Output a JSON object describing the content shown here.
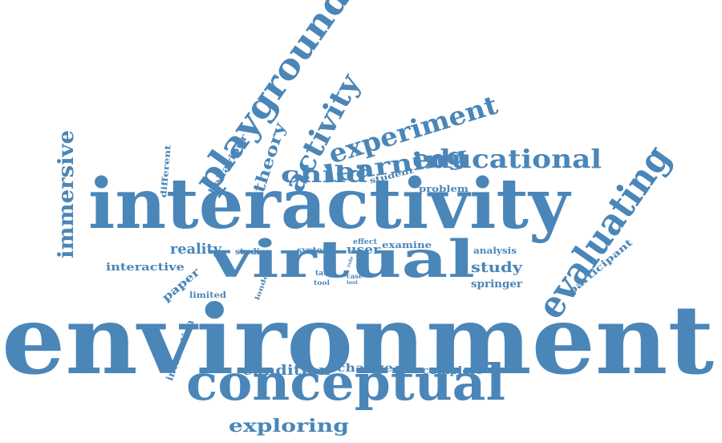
{
  "color": "#4a86b8",
  "words": [
    "environment",
    "interactivity",
    "virtual",
    "conceptual",
    "evaluating",
    "playground",
    "activity",
    "experiment",
    "learning",
    "educational",
    "immersive",
    "child",
    "theory",
    "behaviour",
    "different",
    "student",
    "problem",
    "reality",
    "interactive",
    "studies",
    "system",
    "effect",
    "examine",
    "user",
    "analysis",
    "study",
    "springer",
    "participant",
    "paper",
    "london",
    "task",
    "tool",
    "role",
    "case",
    "test",
    "limited",
    "interaction",
    "condition",
    "change",
    "complete",
    "exploring"
  ]
}
